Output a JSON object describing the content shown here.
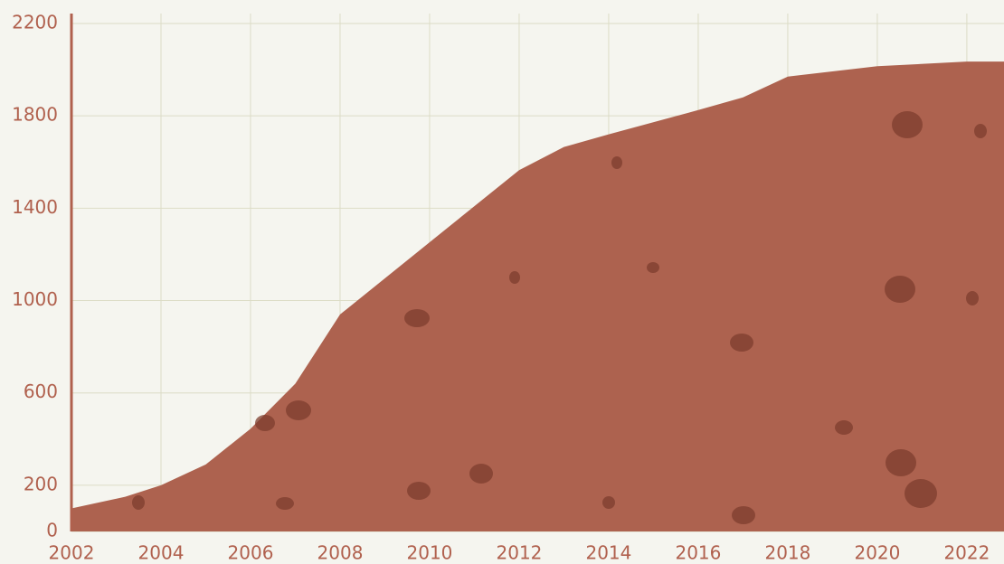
{
  "chart_data": {
    "type": "area",
    "x": [
      2002,
      2003.2,
      2004,
      2005,
      2006,
      2007,
      2008,
      2012,
      2013,
      2014,
      2016,
      2017,
      2018,
      2020,
      2022,
      2022.83
    ],
    "values": [
      100,
      150,
      200,
      290,
      445,
      640,
      940,
      1565,
      1665,
      1720,
      1825,
      1880,
      1970,
      2015,
      2035,
      2035
    ],
    "color": "#ad624f",
    "xlim": [
      2002,
      2022.83
    ],
    "xticks": [
      2002,
      2004,
      2006,
      2008,
      2010,
      2012,
      2014,
      2016,
      2018,
      2020,
      2022
    ],
    "ylim": [
      0,
      2200
    ],
    "yticks": [
      0,
      200,
      600,
      1000,
      1400,
      1800,
      2200
    ],
    "grid": true
  }
}
